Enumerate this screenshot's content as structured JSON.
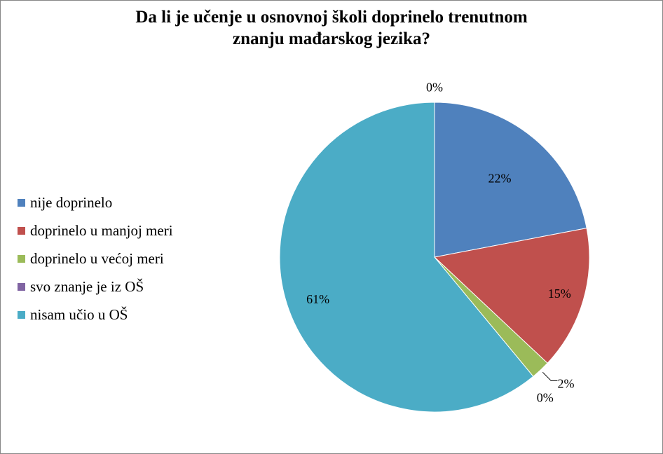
{
  "chart_data": {
    "type": "pie",
    "title_lines": [
      "Da li je učenje u osnovnoj školi doprinelo trenutnom",
      "znanju mađarskog  jezika?"
    ],
    "slices": [
      {
        "label": "nije doprinelo",
        "value": 22,
        "value_label": "22%",
        "color": "#4F81BD"
      },
      {
        "label": "doprinelo u manjoj meri",
        "value": 15,
        "value_label": "15%",
        "color": "#C0504D"
      },
      {
        "label": "doprinelo u većoj meri",
        "value": 2,
        "value_label": "2%",
        "color": "#9BBB59"
      },
      {
        "label": "svo znanje je iz OŠ",
        "value": 0,
        "value_label": "0%",
        "color": "#8064A2"
      },
      {
        "label": "nisam učio u OŠ",
        "value": 61,
        "value_label": "61%",
        "color": "#4BACC6"
      }
    ],
    "extra_zero_label": "0%",
    "legend_position": "left"
  }
}
